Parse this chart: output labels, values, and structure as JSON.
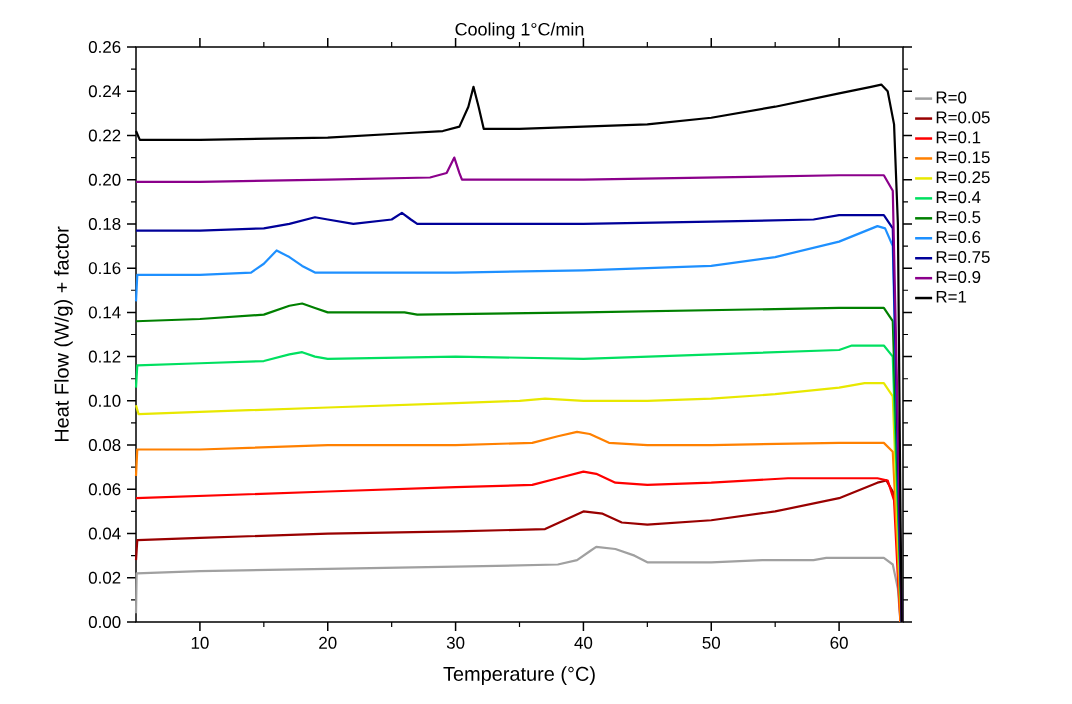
{
  "chart_data": {
    "type": "line",
    "title": "Cooling 1°C/min",
    "xlabel": "Temperature (°C)",
    "ylabel": "Heat Flow (W/g) + factor",
    "xlim": [
      5,
      65
    ],
    "xticks": [
      10,
      20,
      30,
      40,
      50,
      60
    ],
    "ylim": [
      0,
      0.26
    ],
    "yticks": [
      {
        "value": 0,
        "label": "0.00"
      },
      {
        "value": 0.02,
        "label": "0.02"
      },
      {
        "value": 0.04,
        "label": "0.04"
      },
      {
        "value": 0.06,
        "label": "0.06"
      },
      {
        "value": 0.08,
        "label": "0.08"
      },
      {
        "value": 0.1,
        "label": "0.10"
      },
      {
        "value": 0.12,
        "label": "0.12"
      },
      {
        "value": 0.14,
        "label": "0.14"
      },
      {
        "value": 0.16,
        "label": "0.16"
      },
      {
        "value": 0.18,
        "label": "0.18"
      },
      {
        "value": 0.2,
        "label": "0.20"
      },
      {
        "value": 0.22,
        "label": "0.22"
      },
      {
        "value": 0.24,
        "label": "0.24"
      },
      {
        "value": 0.26,
        "label": "0.26"
      }
    ],
    "legend": "right",
    "marker": "none",
    "line_style": "solid",
    "grid": false,
    "series": [
      {
        "name": "R=0",
        "color": "#a0a0a0",
        "x": [
          5,
          5.05,
          10,
          20,
          30,
          38,
          39.5,
          40.5,
          41,
          42.5,
          44,
          45,
          50,
          54,
          58,
          59,
          63.5,
          64.2,
          64.6,
          64.8
        ],
        "values": [
          0.004,
          0.022,
          0.023,
          0.024,
          0.025,
          0.026,
          0.028,
          0.032,
          0.034,
          0.033,
          0.03,
          0.027,
          0.027,
          0.028,
          0.028,
          0.029,
          0.029,
          0.026,
          0.015,
          0
        ]
      },
      {
        "name": "R=0.05",
        "color": "#990000",
        "x": [
          5,
          5.1,
          10,
          20,
          30,
          37,
          38.5,
          40,
          41.5,
          43,
          45,
          50,
          55,
          60,
          63,
          63.7,
          64.3,
          64.7,
          64.9
        ],
        "values": [
          0.028,
          0.037,
          0.038,
          0.04,
          0.041,
          0.042,
          0.046,
          0.05,
          0.049,
          0.045,
          0.044,
          0.046,
          0.05,
          0.056,
          0.063,
          0.064,
          0.058,
          0.03,
          0
        ]
      },
      {
        "name": "R=0.1",
        "color": "#ff0000",
        "x": [
          5,
          10,
          20,
          30,
          36,
          38,
          40,
          41,
          42.5,
          45,
          50,
          56,
          63,
          63.8,
          64.3,
          64.6,
          64.8
        ],
        "values": [
          0.056,
          0.057,
          0.059,
          0.061,
          0.062,
          0.065,
          0.068,
          0.067,
          0.063,
          0.062,
          0.063,
          0.065,
          0.065,
          0.064,
          0.055,
          0.02,
          0
        ]
      },
      {
        "name": "R=0.15",
        "color": "#ff8000",
        "x": [
          5,
          5.1,
          10,
          20,
          30,
          36,
          38,
          39.5,
          40.5,
          42,
          45,
          50,
          60,
          63.5,
          64.2,
          64.6,
          64.8
        ],
        "values": [
          0.066,
          0.078,
          0.078,
          0.08,
          0.08,
          0.081,
          0.084,
          0.086,
          0.085,
          0.081,
          0.08,
          0.08,
          0.081,
          0.081,
          0.077,
          0.03,
          0
        ]
      },
      {
        "name": "R=0.25",
        "color": "#e8e800",
        "x": [
          5,
          5.2,
          10,
          20,
          30,
          35,
          37,
          40,
          45,
          50,
          55,
          60,
          62,
          63.5,
          64.2,
          64.6,
          64.9
        ],
        "values": [
          0.098,
          0.094,
          0.095,
          0.097,
          0.099,
          0.1,
          0.101,
          0.1,
          0.1,
          0.101,
          0.103,
          0.106,
          0.108,
          0.108,
          0.102,
          0.04,
          0
        ]
      },
      {
        "name": "R=0.4",
        "color": "#00e060",
        "x": [
          5,
          5.1,
          10,
          15,
          17,
          18,
          19,
          20,
          30,
          40,
          50,
          60,
          61,
          63.5,
          64.2,
          64.6,
          64.9
        ],
        "values": [
          0.106,
          0.116,
          0.117,
          0.118,
          0.121,
          0.122,
          0.12,
          0.119,
          0.12,
          0.119,
          0.121,
          0.123,
          0.125,
          0.125,
          0.12,
          0.05,
          0
        ]
      },
      {
        "name": "R=0.5",
        "color": "#008000",
        "x": [
          5,
          10,
          15,
          17,
          18,
          19,
          20,
          26,
          27,
          40,
          50,
          60,
          63.5,
          64.2,
          64.6,
          64.9
        ],
        "values": [
          0.136,
          0.137,
          0.139,
          0.143,
          0.144,
          0.142,
          0.14,
          0.14,
          0.139,
          0.14,
          0.141,
          0.142,
          0.142,
          0.136,
          0.06,
          0
        ]
      },
      {
        "name": "R=0.6",
        "color": "#1e90ff",
        "x": [
          5,
          5.1,
          10,
          14,
          15,
          16,
          17,
          18,
          19,
          30,
          40,
          50,
          55,
          60,
          63,
          63.6,
          64.2,
          64.6,
          64.9
        ],
        "values": [
          0.145,
          0.157,
          0.157,
          0.158,
          0.162,
          0.168,
          0.165,
          0.161,
          0.158,
          0.158,
          0.159,
          0.161,
          0.165,
          0.172,
          0.179,
          0.178,
          0.17,
          null,
          0
        ]
      },
      {
        "name": "R=0.75",
        "color": "#000099",
        "x": [
          5,
          10,
          15,
          17,
          19,
          20,
          22,
          25,
          25.8,
          26.5,
          27,
          40,
          50,
          58,
          60,
          63.5,
          64.2,
          64.7,
          64.9
        ],
        "values": [
          0.177,
          0.177,
          0.178,
          0.18,
          0.183,
          0.182,
          0.18,
          0.182,
          0.185,
          0.182,
          0.18,
          0.18,
          0.181,
          0.182,
          0.184,
          0.184,
          0.178,
          0.05,
          0
        ]
      },
      {
        "name": "R=0.9",
        "color": "#8b008b",
        "x": [
          5,
          10,
          20,
          28,
          29.3,
          29.9,
          30.3,
          30.5,
          40,
          50,
          60,
          63.5,
          64.2,
          64.7,
          64.9
        ],
        "values": [
          0.199,
          0.199,
          0.2,
          0.201,
          0.203,
          0.21,
          0.203,
          0.2,
          0.2,
          0.201,
          0.202,
          0.202,
          0.195,
          0.06,
          0
        ]
      },
      {
        "name": "R=1",
        "color": "#000000",
        "x": [
          5,
          5.3,
          10,
          20,
          26,
          29,
          30.3,
          31,
          31.4,
          31.8,
          32.2,
          35,
          40,
          45,
          50,
          55,
          60,
          62.5,
          63.3,
          63.8,
          64.3,
          64.6,
          64.8,
          64.9
        ],
        "values": [
          0.222,
          0.218,
          0.218,
          0.219,
          0.221,
          0.222,
          0.224,
          0.233,
          0.242,
          0.233,
          0.223,
          0.223,
          0.224,
          0.225,
          0.228,
          0.233,
          0.239,
          0.242,
          0.243,
          0.24,
          0.225,
          0.18,
          0.05,
          0
        ]
      }
    ]
  }
}
